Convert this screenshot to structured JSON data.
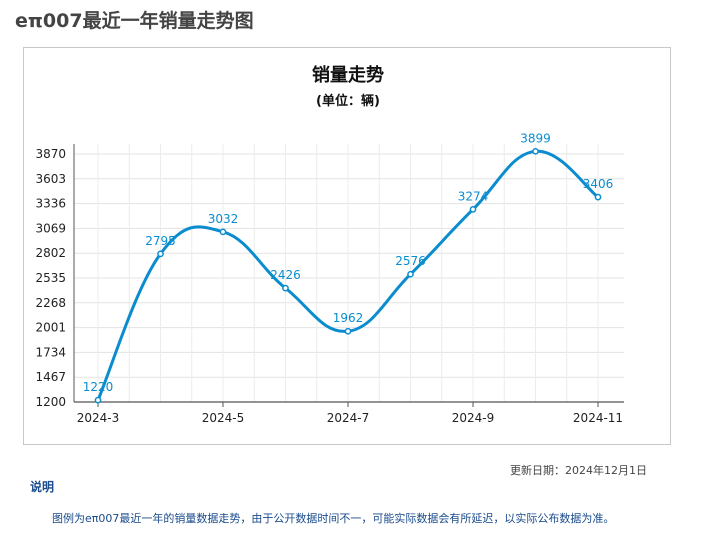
{
  "page": {
    "title": "eπ007最近一年销量走势图"
  },
  "chart_data": {
    "type": "line",
    "title": "销量走势",
    "subtitle": "(单位：辆)",
    "x": [
      "2024-3",
      "2024-4",
      "2024-5",
      "2024-6",
      "2024-7",
      "2024-8",
      "2024-9",
      "2024-10",
      "2024-11"
    ],
    "x_tick_labels": [
      "2024-3",
      "2024-5",
      "2024-7",
      "2024-9",
      "2024-11"
    ],
    "series": [
      {
        "values": [
          1220,
          2795,
          3032,
          2426,
          1962,
          2576,
          3274,
          3899,
          3406
        ]
      }
    ],
    "y_ticks": [
      1200,
      1467,
      1734,
      2001,
      2268,
      2535,
      2802,
      3069,
      3336,
      3603,
      3870
    ],
    "ylim": [
      1200,
      3870
    ],
    "grid": true,
    "line_color": "#0a8ccf",
    "label_color": "#0a8ccf"
  },
  "footer": {
    "update_date": "更新日期：2024年12月1日",
    "notes_heading": "说明",
    "notes_text": "图例为eπ007最近一年的销量数据走势，由于公开数据时间不一，可能实际数据会有所延迟，以实际公布数据为准。"
  }
}
